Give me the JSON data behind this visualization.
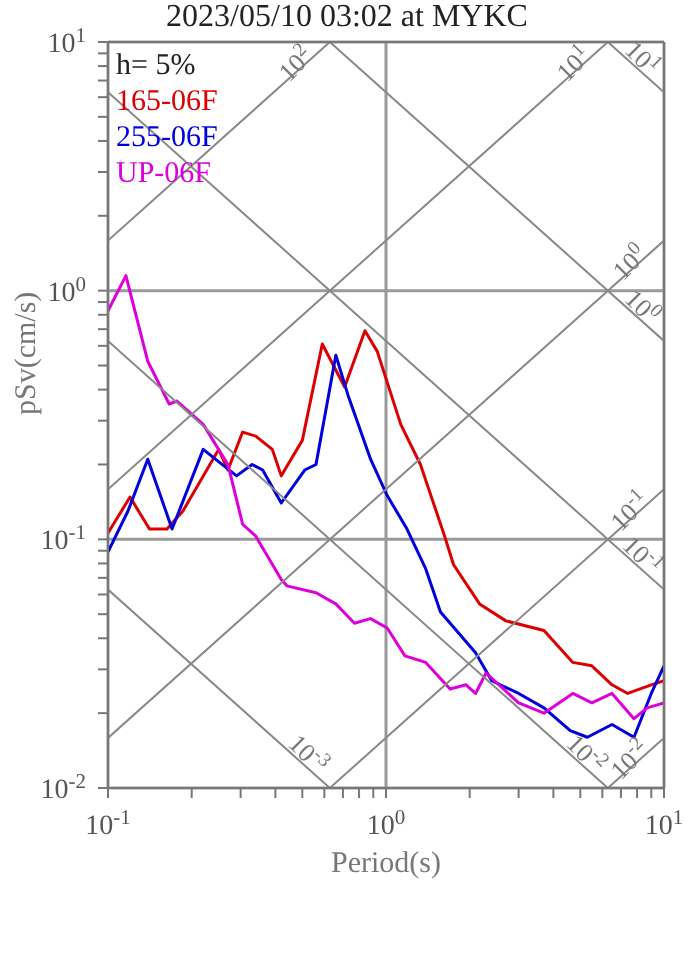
{
  "chart_data": {
    "type": "line",
    "title": "2023/05/10 03:02 at MYKC",
    "xlabel": "Period(s)",
    "ylabel": "pSv(cm/s)",
    "annotations": [
      "h= 5%"
    ],
    "log": "xy",
    "grid": true,
    "legend": "top left",
    "marker": "none",
    "line_style": "solid",
    "xlim": [
      0.1,
      10
    ],
    "ylim": [
      0.01,
      10
    ],
    "xticks": [
      {
        "value": 0.1,
        "label": "10$^{-1}$"
      },
      {
        "value": 0.2,
        "label": null
      },
      {
        "value": 0.3,
        "label": null
      },
      {
        "value": 0.4,
        "label": null
      },
      {
        "value": 0.5,
        "label": null
      },
      {
        "value": 0.6,
        "label": null
      },
      {
        "value": 0.7,
        "label": null
      },
      {
        "value": 0.8,
        "label": null
      },
      {
        "value": 0.9,
        "label": null
      },
      {
        "value": 1,
        "label": "10$^{0}$"
      },
      {
        "value": 2,
        "label": null
      },
      {
        "value": 3,
        "label": null
      },
      {
        "value": 4,
        "label": null
      },
      {
        "value": 5,
        "label": null
      },
      {
        "value": 6,
        "label": null
      },
      {
        "value": 7,
        "label": null
      },
      {
        "value": 8,
        "label": null
      },
      {
        "value": 9,
        "label": null
      },
      {
        "value": 10,
        "label": "10$^{1}$"
      }
    ],
    "yticks": [
      {
        "value": 0.01,
        "label": "10$^{-2}$"
      },
      {
        "value": 0.02,
        "label": null
      },
      {
        "value": 0.03,
        "label": null
      },
      {
        "value": 0.04,
        "label": null
      },
      {
        "value": 0.05,
        "label": null
      },
      {
        "value": 0.06,
        "label": null
      },
      {
        "value": 0.07,
        "label": null
      },
      {
        "value": 0.08,
        "label": null
      },
      {
        "value": 0.09,
        "label": null
      },
      {
        "value": 0.1,
        "label": "10$^{-1}$"
      },
      {
        "value": 0.2,
        "label": null
      },
      {
        "value": 0.3,
        "label": null
      },
      {
        "value": 0.4,
        "label": null
      },
      {
        "value": 0.5,
        "label": null
      },
      {
        "value": 0.6,
        "label": null
      },
      {
        "value": 0.7,
        "label": null
      },
      {
        "value": 0.8,
        "label": null
      },
      {
        "value": 0.9,
        "label": null
      },
      {
        "value": 1,
        "label": "10$^{0}$"
      },
      {
        "value": 2,
        "label": null
      },
      {
        "value": 3,
        "label": null
      },
      {
        "value": 4,
        "label": null
      },
      {
        "value": 5,
        "label": null
      },
      {
        "value": 6,
        "label": null
      },
      {
        "value": 7,
        "label": null
      },
      {
        "value": 8,
        "label": null
      },
      {
        "value": 9,
        "label": null
      },
      {
        "value": 10,
        "label": "10$^{1}$"
      }
    ],
    "series": [
      {
        "name": "165-06F",
        "color": "#dd0000",
        "x": [
          0.1,
          0.12,
          0.141,
          0.163,
          0.186,
          0.25,
          0.27,
          0.305,
          0.34,
          0.39,
          0.42,
          0.5,
          0.59,
          0.71,
          0.84,
          0.93,
          1.13,
          1.33,
          1.62,
          1.75,
          2.17,
          2.7,
          3.7,
          4.7,
          5.5,
          6.5,
          7.4,
          9.0,
          10
        ],
        "values": [
          0.106,
          0.148,
          0.11,
          0.11,
          0.13,
          0.23,
          0.19,
          0.27,
          0.26,
          0.23,
          0.18,
          0.25,
          0.61,
          0.41,
          0.69,
          0.57,
          0.29,
          0.2,
          0.104,
          0.079,
          0.055,
          0.047,
          0.043,
          0.032,
          0.031,
          0.026,
          0.024,
          0.026,
          0.027
        ]
      },
      {
        "name": "255-06F",
        "color": "#0000dd",
        "x": [
          0.1,
          0.118,
          0.139,
          0.17,
          0.22,
          0.29,
          0.33,
          0.36,
          0.42,
          0.51,
          0.56,
          0.66,
          0.73,
          0.88,
          1.01,
          1.19,
          1.39,
          1.57,
          2.1,
          2.4,
          3.0,
          3.7,
          4.6,
          5.3,
          6.5,
          7.8,
          9,
          10
        ],
        "values": [
          0.089,
          0.13,
          0.21,
          0.11,
          0.23,
          0.18,
          0.2,
          0.19,
          0.14,
          0.19,
          0.2,
          0.55,
          0.38,
          0.21,
          0.15,
          0.11,
          0.076,
          0.051,
          0.035,
          0.027,
          0.024,
          0.021,
          0.017,
          0.016,
          0.018,
          0.016,
          0.024,
          0.031
        ]
      },
      {
        "name": "UP-06F",
        "color": "#dd00dd",
        "x": [
          0.1,
          0.116,
          0.139,
          0.166,
          0.177,
          0.22,
          0.27,
          0.305,
          0.34,
          0.42,
          0.44,
          0.56,
          0.66,
          0.77,
          0.88,
          1.01,
          1.17,
          1.39,
          1.7,
          1.94,
          2.1,
          2.29,
          3.0,
          3.7,
          4.7,
          5.5,
          6.5,
          7.8,
          8.7,
          10
        ],
        "values": [
          0.83,
          1.15,
          0.52,
          0.35,
          0.36,
          0.29,
          0.2,
          0.115,
          0.103,
          0.069,
          0.065,
          0.061,
          0.055,
          0.046,
          0.048,
          0.044,
          0.034,
          0.032,
          0.025,
          0.026,
          0.024,
          0.029,
          0.022,
          0.02,
          0.024,
          0.022,
          0.024,
          0.019,
          0.021,
          0.022
        ]
      },
      {
        "name": "10$^{2}$",
        "type": "line",
        "color": "#888888",
        "x": [
          0.1,
          0.628
        ],
        "values": [
          1.59,
          10
        ]
      },
      {
        "name": "10$^{1}$",
        "type": "line",
        "color": "#888888",
        "x": [
          0.1,
          6.28
        ],
        "values": [
          0.159,
          10
        ]
      },
      {
        "name": "10$^{0}$",
        "type": "line",
        "color": "#888888",
        "x": [
          0.1,
          10
        ],
        "values": [
          0.0159,
          1.59
        ]
      },
      {
        "name": "10$^{-1}$",
        "type": "line",
        "color": "#888888",
        "x": [
          0.628,
          10
        ],
        "values": [
          0.01,
          0.159
        ]
      },
      {
        "name": "10$^{-2}$",
        "type": "line",
        "color": "#888888",
        "x": [
          6.28,
          10
        ],
        "values": [
          0.01,
          0.0159
        ]
      },
      {
        "name": "10$^{1}$",
        "type": "line",
        "color": "#888888",
        "x": [
          6.28,
          10
        ],
        "values": [
          10,
          6.28
        ]
      },
      {
        "name": "10$^{0}$",
        "type": "line",
        "color": "#888888",
        "x": [
          0.628,
          10
        ],
        "values": [
          10,
          0.628
        ]
      },
      {
        "name": "10$^{-1}$",
        "type": "line",
        "color": "#888888",
        "x": [
          0.1,
          10
        ],
        "values": [
          6.28,
          0.0628
        ]
      },
      {
        "name": "10$^{-2}$",
        "type": "line",
        "color": "#888888",
        "x": [
          0.1,
          6.28
        ],
        "values": [
          0.628,
          0.01
        ]
      },
      {
        "name": "10$^{-3}$",
        "type": "line",
        "color": "#888888",
        "x": [
          0.1,
          0.628
        ],
        "values": [
          0.0628,
          0.01
        ]
      }
    ]
  }
}
